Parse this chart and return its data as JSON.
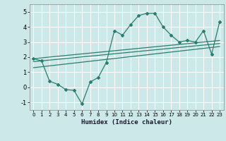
{
  "xlabel": "Humidex (Indice chaleur)",
  "xlim": [
    -0.5,
    23.5
  ],
  "ylim": [
    -1.5,
    5.5
  ],
  "xticks": [
    0,
    1,
    2,
    3,
    4,
    5,
    6,
    7,
    8,
    9,
    10,
    11,
    12,
    13,
    14,
    15,
    16,
    17,
    18,
    19,
    20,
    21,
    22,
    23
  ],
  "yticks": [
    -1,
    0,
    1,
    2,
    3,
    4,
    5
  ],
  "bg_color": "#cce8e8",
  "line_color": "#2d7d6e",
  "grid_color": "#ffffff",
  "scatter_x": [
    0,
    1,
    2,
    3,
    4,
    5,
    6,
    7,
    8,
    9,
    10,
    11,
    12,
    13,
    14,
    15,
    16,
    17,
    18,
    19,
    20,
    21,
    22,
    23
  ],
  "scatter_y": [
    1.9,
    1.75,
    0.4,
    0.2,
    -0.15,
    -0.2,
    -1.1,
    0.35,
    0.65,
    1.65,
    3.75,
    3.45,
    4.15,
    4.75,
    4.9,
    4.9,
    4.0,
    3.45,
    3.0,
    3.1,
    3.0,
    3.75,
    2.2,
    4.35
  ],
  "line1_x": [
    0,
    23
  ],
  "line1_y": [
    1.9,
    3.1
  ],
  "line2_x": [
    0,
    23
  ],
  "line2_y": [
    1.7,
    2.9
  ],
  "line3_x": [
    0,
    23
  ],
  "line3_y": [
    1.3,
    2.7
  ]
}
